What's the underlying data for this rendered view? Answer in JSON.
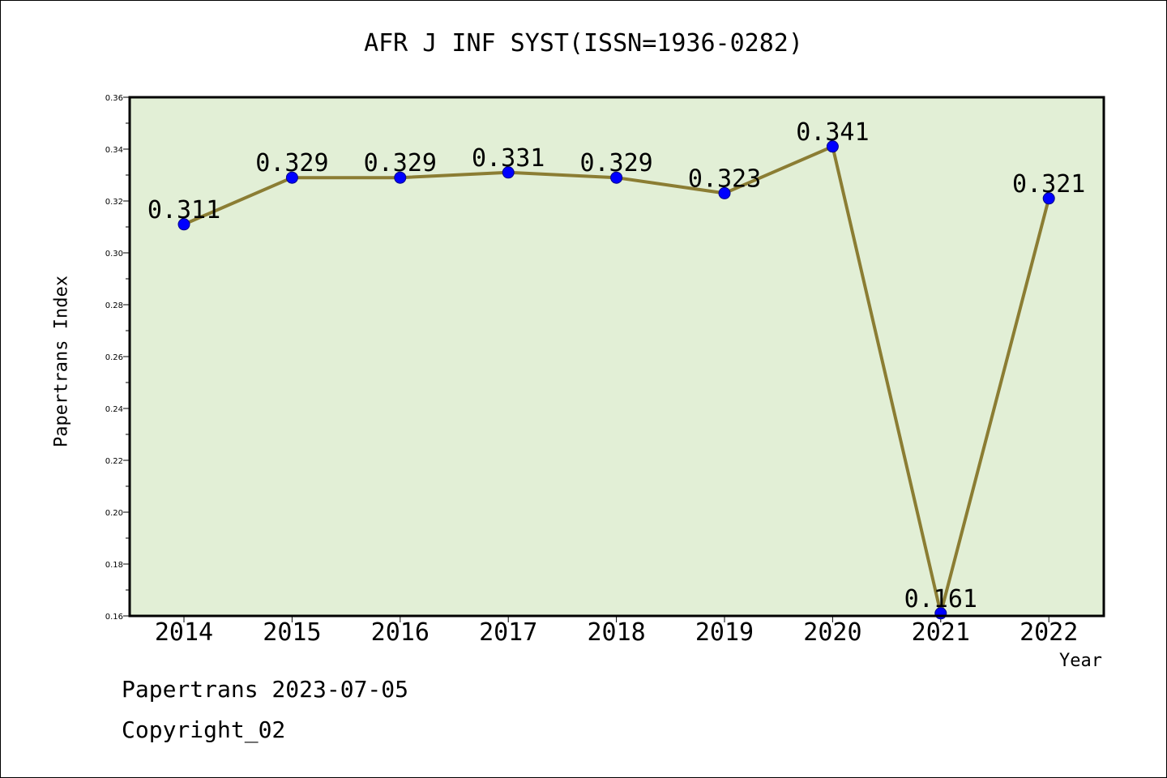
{
  "chart_data": {
    "type": "line",
    "title": "AFR J INF SYST(ISSN=1936-0282)",
    "xlabel": "Year",
    "ylabel": "Papertrans Index",
    "categories": [
      "2014",
      "2015",
      "2016",
      "2017",
      "2018",
      "2019",
      "2020",
      "2021",
      "2022"
    ],
    "values": [
      0.311,
      0.329,
      0.329,
      0.331,
      0.329,
      0.323,
      0.341,
      0.161,
      0.321
    ],
    "data_labels": [
      "0.311",
      "0.329",
      "0.329",
      "0.331",
      "0.329",
      "0.323",
      "0.341",
      "0.161",
      "0.321"
    ],
    "ylim": [
      0.16,
      0.36
    ],
    "yticks": [
      "0.16",
      "0.18",
      "0.20",
      "0.22",
      "0.24",
      "0.26",
      "0.28",
      "0.30",
      "0.32",
      "0.34",
      "0.36"
    ],
    "grid": false,
    "colors": {
      "plot_background": "#e2efd6",
      "line": "#8b7d33",
      "marker": "#0000ff"
    }
  },
  "footer": {
    "line1": "Papertrans 2023-07-05",
    "line2": "Copyright_02"
  }
}
